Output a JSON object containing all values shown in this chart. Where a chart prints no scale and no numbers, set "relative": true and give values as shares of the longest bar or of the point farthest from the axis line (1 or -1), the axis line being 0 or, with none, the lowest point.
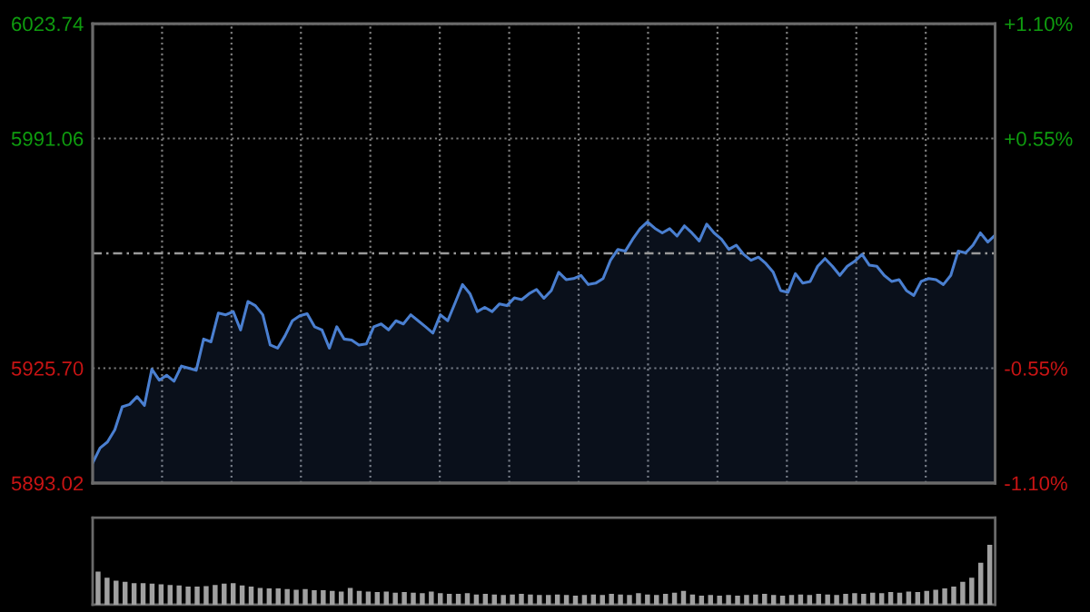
{
  "chart_data": [
    {
      "type": "area",
      "color": "#4a7fd0",
      "grid": true,
      "tick_labels": "y",
      "categories": [
        null,
        null,
        null,
        null,
        null,
        null,
        null,
        null,
        null,
        null,
        null,
        null,
        null,
        null,
        null,
        null,
        null,
        null,
        null,
        null,
        null,
        null,
        null,
        null,
        null,
        null,
        null,
        null,
        null,
        null,
        null,
        null,
        null,
        null,
        null,
        null,
        null,
        null,
        null,
        null,
        null,
        null,
        null,
        null,
        null,
        null,
        null,
        null,
        null,
        null,
        null,
        null,
        null,
        null,
        null,
        null,
        null,
        null,
        null,
        null,
        null,
        null,
        null,
        null,
        null,
        null,
        null,
        null,
        null,
        null,
        null,
        null,
        null,
        null,
        null,
        null,
        null,
        null,
        null,
        null,
        null,
        null,
        null,
        null,
        null,
        null,
        null,
        null,
        null,
        null,
        null,
        null,
        null,
        null,
        null,
        null,
        null,
        null,
        null,
        null,
        null,
        null,
        null,
        null,
        null,
        null,
        null,
        null,
        null,
        null,
        null,
        null,
        null,
        null,
        null,
        null,
        null,
        null,
        null,
        null,
        null,
        null,
        null
      ],
      "values": [
        5898.7,
        5903.0,
        5904.7,
        5908.2,
        5914.7,
        5915.4,
        5917.6,
        5915.1,
        5925.4,
        5922.3,
        5923.7,
        5922.0,
        5926.3,
        5925.7,
        5925.1,
        5934.0,
        5933.2,
        5941.4,
        5940.9,
        5941.8,
        5936.6,
        5944.7,
        5943.5,
        5940.9,
        5932.3,
        5931.4,
        5934.9,
        5939.2,
        5940.6,
        5941.2,
        5937.5,
        5936.6,
        5931.4,
        5937.5,
        5934.0,
        5933.7,
        5932.3,
        5932.6,
        5937.5,
        5938.3,
        5936.6,
        5939.2,
        5938.3,
        5940.9,
        5939.2,
        5937.5,
        5935.7,
        5940.9,
        5939.2,
        5944.3,
        5949.5,
        5946.9,
        5941.8,
        5943.0,
        5941.8,
        5944.0,
        5943.5,
        5945.7,
        5945.2,
        5946.9,
        5948.1,
        5945.6,
        5947.8,
        5953.0,
        5950.9,
        5951.2,
        5952.1,
        5949.5,
        5949.9,
        5951.2,
        5956.4,
        5959.5,
        5959.0,
        5962.4,
        5965.4,
        5967.3,
        5965.5,
        5964.2,
        5965.4,
        5963.3,
        5966.2,
        5964.2,
        5961.9,
        5966.7,
        5964.2,
        5962.4,
        5959.5,
        5960.7,
        5958.1,
        5956.4,
        5957.3,
        5955.5,
        5953.0,
        5947.8,
        5947.3,
        5952.6,
        5949.9,
        5950.4,
        5954.7,
        5956.9,
        5954.7,
        5952.1,
        5954.7,
        5956.1,
        5958.1,
        5955.0,
        5954.7,
        5952.1,
        5950.4,
        5950.9,
        5947.8,
        5946.4,
        5950.4,
        5951.2,
        5950.9,
        5949.5,
        5952.1,
        5959.0,
        5958.5,
        5960.7,
        5964.2,
        5961.6,
        5963.6
      ],
      "ylim": [
        5893.02,
        6023.74
      ],
      "yticks": [
        5893.02,
        {
          "value": 5925.7,
          "label": "5925.70"
        },
        5991.06,
        6023.74
      ],
      "y2lim": [
        -1.1,
        1.1
      ],
      "y2ticks": [
        {
          "value": -1.1,
          "label": "-1.10%"
        },
        {
          "value": -0.55,
          "label": "-0.55%"
        },
        {
          "value": 0.55,
          "label": "+0.55%"
        },
        {
          "value": 1.1,
          "label": "+1.10%"
        }
      ],
      "ref_lines": [
        {
          "axis": "y",
          "value": 5958.38,
          "line_style": "dashed",
          "color": "#9a9a9a"
        }
      ]
    },
    {
      "type": "bar",
      "relative": true,
      "color": "#a0a0a0",
      "categories": [
        null,
        null,
        null,
        null,
        null,
        null,
        null,
        null,
        null,
        null,
        null,
        null,
        null,
        null,
        null,
        null,
        null,
        null,
        null,
        null,
        null,
        null,
        null,
        null,
        null,
        null,
        null,
        null,
        null,
        null,
        null,
        null,
        null,
        null,
        null,
        null,
        null,
        null,
        null,
        null,
        null,
        null,
        null,
        null,
        null,
        null,
        null,
        null,
        null,
        null,
        null,
        null,
        null,
        null,
        null,
        null,
        null,
        null,
        null,
        null,
        null,
        null,
        null,
        null,
        null,
        null,
        null,
        null,
        null,
        null,
        null,
        null,
        null,
        null,
        null,
        null,
        null,
        null,
        null,
        null,
        null,
        null,
        null,
        null,
        null,
        null,
        null,
        null,
        null,
        null,
        null,
        null,
        null,
        null,
        null,
        null,
        null,
        null,
        null,
        null
      ],
      "values": [
        0.55,
        0.45,
        0.4,
        0.38,
        0.36,
        0.36,
        0.35,
        0.34,
        0.33,
        0.32,
        0.3,
        0.3,
        0.31,
        0.33,
        0.35,
        0.36,
        0.32,
        0.3,
        0.28,
        0.27,
        0.27,
        0.26,
        0.25,
        0.26,
        0.24,
        0.24,
        0.23,
        0.22,
        0.28,
        0.23,
        0.22,
        0.21,
        0.22,
        0.2,
        0.21,
        0.2,
        0.19,
        0.22,
        0.19,
        0.18,
        0.18,
        0.19,
        0.17,
        0.18,
        0.17,
        0.16,
        0.17,
        0.18,
        0.17,
        0.16,
        0.16,
        0.17,
        0.16,
        0.15,
        0.16,
        0.17,
        0.16,
        0.18,
        0.17,
        0.16,
        0.19,
        0.17,
        0.16,
        0.18,
        0.2,
        0.23,
        0.17,
        0.15,
        0.16,
        0.15,
        0.16,
        0.15,
        0.16,
        0.17,
        0.18,
        0.16,
        0.15,
        0.16,
        0.17,
        0.16,
        0.18,
        0.17,
        0.16,
        0.18,
        0.19,
        0.18,
        0.2,
        0.19,
        0.21,
        0.2,
        0.22,
        0.21,
        0.23,
        0.25,
        0.27,
        0.3,
        0.38,
        0.45,
        0.7,
        1.0
      ]
    }
  ]
}
